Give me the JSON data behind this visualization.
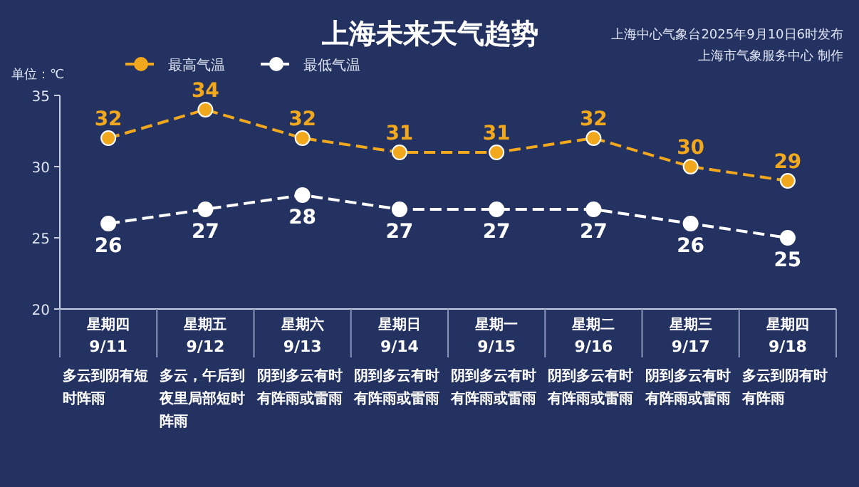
{
  "chart_data": {
    "type": "line",
    "title": "上海未来天气趋势",
    "ylabel": "单位：℃",
    "categories": [
      "星期四\n9/11",
      "星期五\n9/12",
      "星期六\n9/13",
      "星期日\n9/14",
      "星期一\n9/15",
      "星期二\n9/16",
      "星期三\n9/17",
      "星期四\n9/18"
    ],
    "series": [
      {
        "name": "最高气温",
        "color": "#f2a81d",
        "values": [
          32,
          34,
          32,
          31,
          31,
          32,
          30,
          29
        ]
      },
      {
        "name": "最低气温",
        "color": "#ffffff",
        "values": [
          26,
          27,
          28,
          27,
          27,
          27,
          26,
          25
        ]
      }
    ],
    "ylim": [
      20,
      35
    ],
    "yticks": [
      20,
      25,
      30,
      35
    ],
    "marker": "circle",
    "line_style": "dashed",
    "data_labels": true,
    "legend": "top left",
    "grid": false,
    "annotations": [
      "上海中心气象台2025年9月10日6时发布",
      "上海市气象服务中心 制作",
      "多云到阴有短时阵雨",
      "多云，午后到夜里局部短时阵雨",
      "阴到多云有时有阵雨或雷雨",
      "阴到多云有时有阵雨或雷雨",
      "阴到多云有时有阵雨或雷雨",
      "阴到多云有时有阵雨或雷雨",
      "阴到多云有时有阵雨或雷雨",
      "多云到阴有时有阵雨"
    ]
  }
}
